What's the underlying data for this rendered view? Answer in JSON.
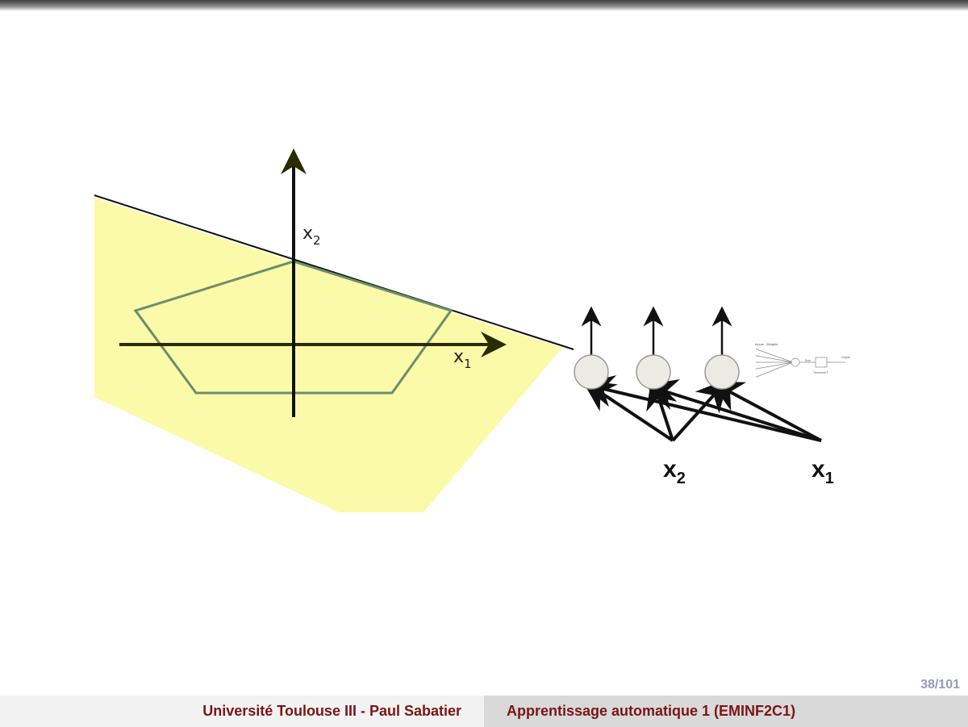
{
  "diagram": {
    "plot": {
      "x_axis_label": "x",
      "x_axis_subscript": "1",
      "y_axis_label": "x",
      "y_axis_subscript": "2"
    },
    "network": {
      "input_left_label": "x",
      "input_left_subscript": "2",
      "input_right_label": "x",
      "input_right_subscript": "1",
      "inset_labels": [
        "Inputs",
        "Weights",
        "Sum",
        "Output",
        "Threshold T"
      ]
    },
    "colors": {
      "region_fill": "#fbfaa8",
      "polygon_stroke": "#6b8e6b",
      "axis_color": "#2b2b00",
      "neuron_fill": "#ebebe3"
    }
  },
  "footer": {
    "page_number": "38/101",
    "left_text": "Université Toulouse III - Paul Sabatier",
    "right_text": "Apprentissage automatique 1 (EMINF2C1)"
  }
}
